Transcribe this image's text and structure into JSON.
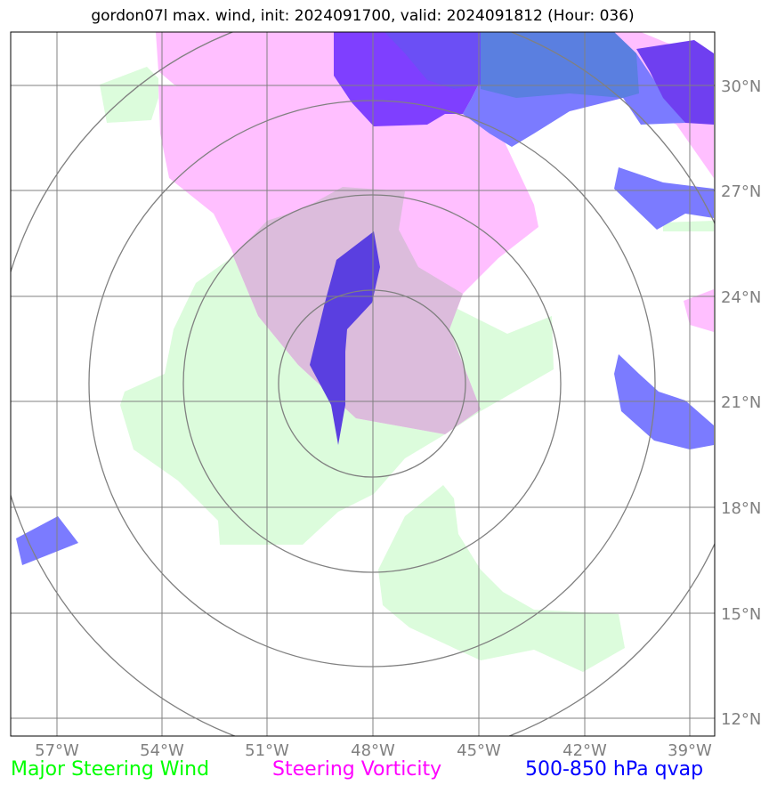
{
  "title": "gordon07l max. wind, init: 2024091700, valid: 2024091812 (Hour: 036)",
  "lon_labels": [
    "57°W",
    "54°W",
    "51°W",
    "48°W",
    "45°W",
    "42°W",
    "39°W"
  ],
  "lat_labels": [
    "30°N",
    "27°N",
    "24°N",
    "21°N",
    "18°N",
    "15°N",
    "12°N"
  ],
  "legend": {
    "wind": "Major Steering Wind",
    "vorticity": "Steering Vorticity",
    "qvap": "500-850 hPa qvap"
  },
  "colors": {
    "wind": "#00ff00",
    "vorticity": "#ff00ff",
    "qvap": "#0000ff",
    "grid": "#808080"
  }
}
